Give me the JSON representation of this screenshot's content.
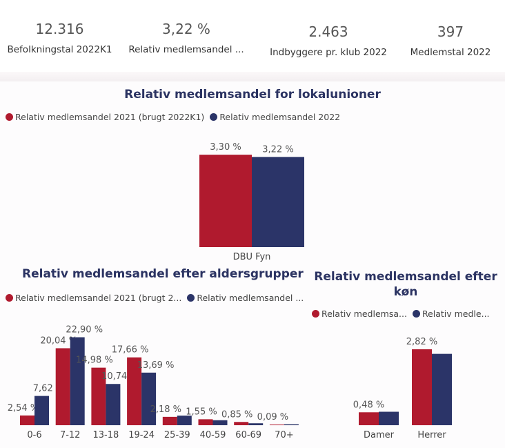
{
  "kpis": [
    {
      "value": "12.316",
      "label": "Befolkningstal 2022K1"
    },
    {
      "value": "3,22 %",
      "label": "Relativ medlemsandel ..."
    },
    {
      "value": "2.463",
      "label": "Indbyggere pr. klub 2022"
    },
    {
      "value": "397",
      "label": "Medlemstal 2022"
    }
  ],
  "colors": {
    "series_2021": "#b01a2e",
    "series_2022": "#2b3468"
  },
  "chart_data": [
    {
      "type": "bar",
      "title": "Relativ medlemsandel for lokalunioner",
      "legend": [
        "Relativ medlemsandel 2021 (brugt 2022K1)",
        "Relativ medlemsandel 2022"
      ],
      "categories": [
        "DBU Fyn"
      ],
      "series": [
        {
          "name": "Relativ medlemsandel 2021 (brugt 2022K1)",
          "values": [
            3.3
          ],
          "labels": [
            "3,30 %"
          ]
        },
        {
          "name": "Relativ medlemsandel 2022",
          "values": [
            3.22
          ],
          "labels": [
            "3,22 %"
          ]
        }
      ],
      "ylim": [
        0,
        3.5
      ]
    },
    {
      "type": "bar",
      "title": "Relativ medlemsandel efter aldersgrupper",
      "legend": [
        "Relativ medlemsandel 2021 (brugt 2...",
        "Relativ medlemsandel ..."
      ],
      "categories": [
        "0-6",
        "7-12",
        "13-18",
        "19-24",
        "25-39",
        "40-59",
        "60-69",
        "70+"
      ],
      "series": [
        {
          "name": "Relativ medlemsandel 2021 (brugt 2...",
          "values": [
            2.54,
            20.04,
            14.98,
            17.66,
            2.18,
            1.55,
            0.85,
            0.09
          ],
          "labels": [
            "2,54 %",
            "20,04 %",
            "14,98 %",
            "17,66 %",
            "2,18 %",
            "1,55 %",
            "0,85 %",
            "0,09 %"
          ]
        },
        {
          "name": "Relativ medlemsandel ...",
          "values": [
            7.62,
            22.9,
            10.74,
            13.69,
            2.5,
            1.3,
            0.5,
            0.25
          ],
          "labels": [
            "7,62 %",
            "22,90 %",
            "10,74 %",
            "13,69 %",
            "",
            "",
            "",
            ""
          ]
        }
      ],
      "ylim": [
        0,
        23
      ]
    },
    {
      "type": "bar",
      "title": "Relativ medlemsandel efter køn",
      "legend": [
        "Relativ medlemsa...",
        "Relativ medle..."
      ],
      "categories": [
        "Damer",
        "Herrer"
      ],
      "series": [
        {
          "name": "Relativ medlemsa...",
          "values": [
            0.48,
            2.82
          ],
          "labels": [
            "0,48 %",
            "2,82 %"
          ]
        },
        {
          "name": "Relativ medle...",
          "values": [
            0.5,
            2.65
          ],
          "labels": [
            "",
            ""
          ]
        }
      ],
      "ylim": [
        0,
        2.82
      ]
    }
  ]
}
